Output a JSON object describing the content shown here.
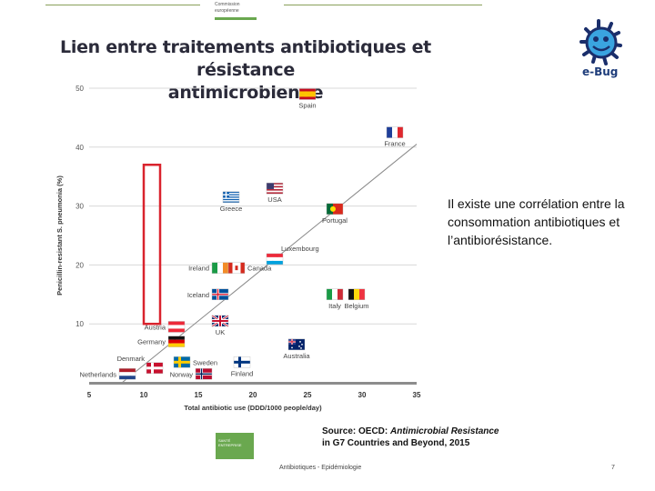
{
  "header": {
    "ec_logo_line1": "Commission",
    "ec_logo_line2": "européenne",
    "title_line1": "Lien entre traitements antibiotiques et résistance",
    "title_line2": "antimicrobienne",
    "brand": "e-Bug"
  },
  "caption": "Il existe une corrélation entre la consommation antibiotiques et l’antibiorésistance.",
  "source": {
    "prefix": "Source: OECD: ",
    "italic": "Antimicrobial Resistance",
    "line2": "in G7 Countries and Beyond, 2015"
  },
  "footer": {
    "text": "Antibiotiques - Epidémiologie",
    "page": "7",
    "green_box": "SANTÉ ENTREPRISE"
  },
  "colors": {
    "highlight": "#d9232d",
    "trendline": "#8a8a8a",
    "grid": "#d8d8d8",
    "axis_bar": "#8c8c8c"
  },
  "chart_data": {
    "type": "scatter",
    "xlabel": "Total antibiotic use (DDD/1000 people/day)",
    "ylabel": "Penicillin-resistant S. pneumonia (%)",
    "xlim": [
      5,
      35
    ],
    "ylim": [
      0,
      50
    ],
    "xticks": [
      5,
      10,
      15,
      20,
      25,
      30,
      35
    ],
    "yticks": [
      10,
      20,
      30,
      40,
      50
    ],
    "grid": true,
    "trendline": {
      "x": [
        8,
        36
      ],
      "y": [
        0,
        42
      ]
    },
    "points": [
      {
        "name": "Spain",
        "x": 25,
        "y": 49,
        "flag": "spain",
        "label_pos": "below"
      },
      {
        "name": "France",
        "x": 33,
        "y": 42.5,
        "flag": "france",
        "label_pos": "below"
      },
      {
        "name": "USA",
        "x": 22,
        "y": 33,
        "flag": "usa",
        "label_pos": "below"
      },
      {
        "name": "Greece",
        "x": 18,
        "y": 31.5,
        "flag": "greece",
        "label_pos": "below"
      },
      {
        "name": "Portugal",
        "x": 27.5,
        "y": 29.5,
        "flag": "portugal",
        "label_pos": "below"
      },
      {
        "name": "Luxembourg",
        "x": 22,
        "y": 21,
        "flag": "luxembourg",
        "label_pos": "above-right"
      },
      {
        "name": "Ireland",
        "x": 17,
        "y": 19.5,
        "flag": "ireland",
        "label_pos": "left"
      },
      {
        "name": "Canada",
        "x": 18.5,
        "y": 19.5,
        "flag": "canada",
        "label_pos": "right"
      },
      {
        "name": "Iceland",
        "x": 17,
        "y": 15,
        "flag": "iceland",
        "label_pos": "left"
      },
      {
        "name": "Italy",
        "x": 27.5,
        "y": 15,
        "flag": "italy",
        "label_pos": "below"
      },
      {
        "name": "Belgium",
        "x": 29.5,
        "y": 15,
        "flag": "belgium",
        "label_pos": "below"
      },
      {
        "name": "Austria",
        "x": 13,
        "y": 9.5,
        "flag": "austria",
        "label_pos": "left"
      },
      {
        "name": "UK",
        "x": 17,
        "y": 10.5,
        "flag": "uk",
        "label_pos": "below"
      },
      {
        "name": "Germany",
        "x": 13,
        "y": 7,
        "flag": "germany",
        "label_pos": "left"
      },
      {
        "name": "Australia",
        "x": 24,
        "y": 6.5,
        "flag": "australia",
        "label_pos": "below"
      },
      {
        "name": "Denmark",
        "x": 11,
        "y": 2.5,
        "flag": "denmark",
        "label_pos": "above-left"
      },
      {
        "name": "Sweden",
        "x": 13.5,
        "y": 3.5,
        "flag": "sweden",
        "label_pos": "right"
      },
      {
        "name": "Netherlands",
        "x": 8.5,
        "y": 1.5,
        "flag": "netherlands",
        "label_pos": "left"
      },
      {
        "name": "Norway",
        "x": 15.5,
        "y": 1.5,
        "flag": "norway",
        "label_pos": "left"
      },
      {
        "name": "Finland",
        "x": 19,
        "y": 3.5,
        "flag": "finland",
        "label_pos": "below"
      }
    ],
    "highlight_x": [
      10,
      11.5
    ],
    "highlight_y": [
      10,
      37
    ]
  }
}
